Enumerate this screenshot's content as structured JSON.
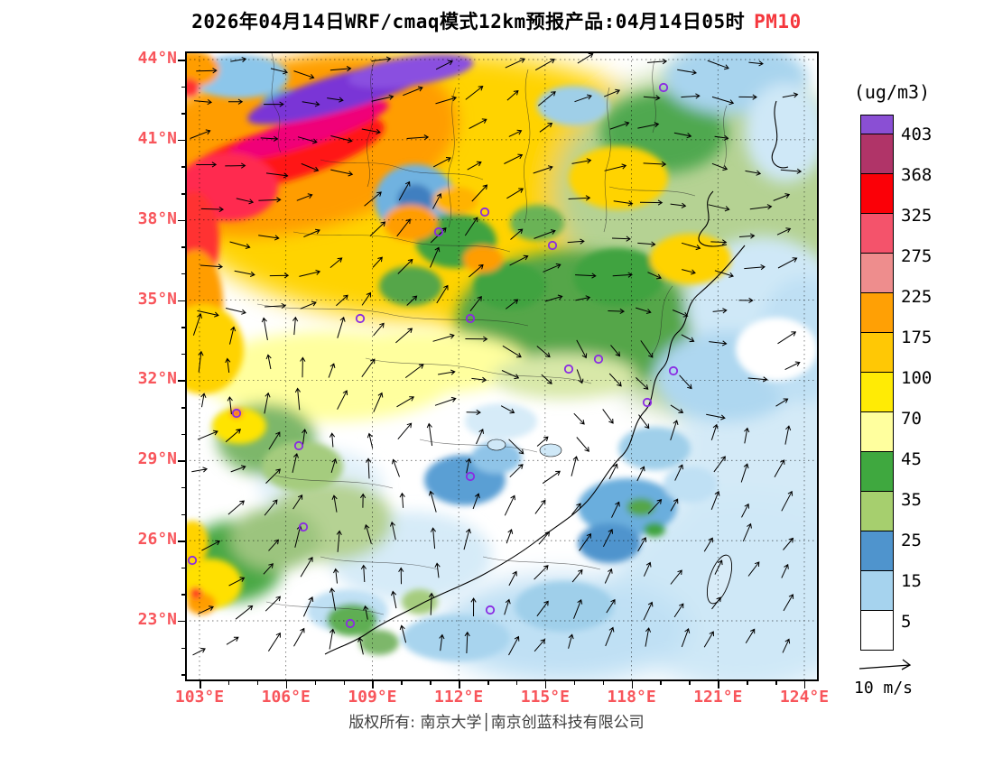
{
  "title": {
    "main": "2026年04月14日WRF/cmaq模式12km预报产品:04月14日05时",
    "highlight": "PM10"
  },
  "colorbar": {
    "title": "(ug/m3)",
    "levels": [
      "403",
      "368",
      "325",
      "275",
      "225",
      "175",
      "100",
      "70",
      "45",
      "35",
      "25",
      "15",
      "5"
    ],
    "colors": [
      "#8a4fd4",
      "#b03468",
      "#fb0007",
      "#f4536b",
      "#ee8d8d",
      "#ffa005",
      "#ffc805",
      "#ffeb05",
      "#ffff9e",
      "#3fa83f",
      "#a6cf6e",
      "#4f94cd",
      "#a6d3ee",
      "#ffffff"
    ]
  },
  "axes": {
    "x_ticks": [
      "103°E",
      "106°E",
      "109°E",
      "112°E",
      "115°E",
      "118°E",
      "121°E",
      "124°E"
    ],
    "y_ticks": [
      "44°N",
      "41°N",
      "38°N",
      "35°N",
      "32°N",
      "29°N",
      "26°N",
      "23°N"
    ]
  },
  "wind_reference": {
    "label": "10 m/s"
  },
  "caption": "版权所有: 南京大学│南京创蓝科技有限公司",
  "markers": [
    [
      530,
      40
    ],
    [
      281,
      200
    ],
    [
      332,
      178
    ],
    [
      407,
      215
    ],
    [
      316,
      296
    ],
    [
      194,
      296
    ],
    [
      425,
      352
    ],
    [
      458,
      341
    ],
    [
      541,
      354
    ],
    [
      512,
      389
    ],
    [
      57,
      401
    ],
    [
      126,
      437
    ],
    [
      316,
      471
    ],
    [
      131,
      527
    ],
    [
      8,
      564
    ],
    [
      183,
      634
    ],
    [
      338,
      619
    ]
  ],
  "colors": {
    "axis_label": "#f8555b",
    "title_highlight": "#f5373d",
    "caption": "#3d3d3d"
  },
  "chart_data": {
    "type": "heatmap",
    "subtype": "filled_contour_map_with_wind_vectors",
    "title": "2026年04月14日WRF/cmaq模式12km预报产品:04月14日05时",
    "variable": "PM10",
    "units": "ug/m3",
    "model": "WRF/cmaq 12km",
    "forecast_time": "04月14日05时",
    "color_levels": [
      5,
      15,
      25,
      35,
      45,
      70,
      100,
      175,
      225,
      275,
      325,
      368,
      403
    ],
    "colors_low_to_high": [
      "#ffffff",
      "#a6d3ee",
      "#4f94cd",
      "#a6cf6e",
      "#3fa83f",
      "#ffff9e",
      "#ffeb05",
      "#ffc805",
      "#ffa005",
      "#ee8d8d",
      "#f4536b",
      "#fb0007",
      "#b03468",
      "#8a4fd4"
    ],
    "x_axis": {
      "tick_labels": [
        "103°E",
        "106°E",
        "109°E",
        "112°E",
        "115°E",
        "118°E",
        "121°E",
        "124°E"
      ],
      "range_deg_east": [
        102.5,
        124.5
      ]
    },
    "y_axis": {
      "tick_labels": [
        "44°N",
        "41°N",
        "38°N",
        "35°N",
        "32°N",
        "29°N",
        "26°N",
        "23°N"
      ],
      "range_deg_north": [
        20.8,
        44.3
      ]
    },
    "wind_reference": "10 m/s",
    "legend_position": "right",
    "field_pattern": "high PM10 (orange-red-purple >175) band across northwest; yellow-gold 70-175 over north-central plain; greens 25-70 northeast and mid latitudes; white-blue <25 across south and coastal seas"
  }
}
